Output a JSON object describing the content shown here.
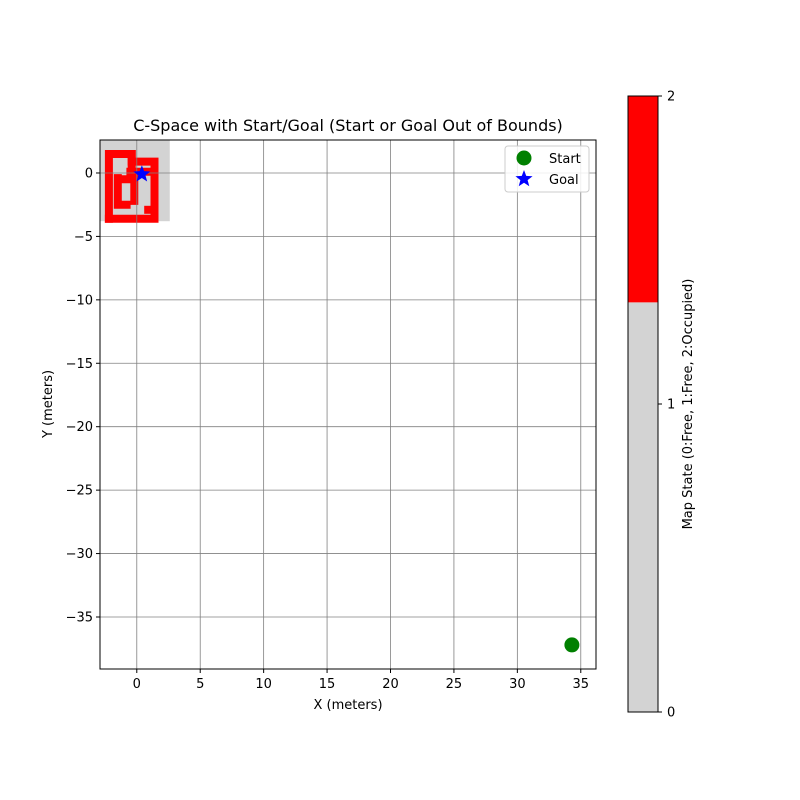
{
  "chart_data": {
    "type": "scatter",
    "title": "C-Space with Start/Goal (Start or Goal Out of Bounds)",
    "xlabel": "X (meters)",
    "ylabel": "Y (meters)",
    "xlim": [
      -2.9,
      36.2
    ],
    "ylim": [
      -39.1,
      2.6
    ],
    "xticks": [
      0,
      5,
      10,
      15,
      20,
      25,
      30,
      35
    ],
    "yticks": [
      0,
      -5,
      -10,
      -15,
      -20,
      -25,
      -30,
      -35
    ],
    "grid": true,
    "legend_position": "top-right",
    "series": [
      {
        "name": "Start",
        "marker": "circle",
        "color": "#008000",
        "x": [
          34.3
        ],
        "y": [
          -37.2
        ]
      },
      {
        "name": "Goal",
        "marker": "star",
        "color": "#0000ff",
        "x": [
          0.4
        ],
        "y": [
          -0.1
        ]
      }
    ],
    "map": {
      "extent": {
        "x": [
          -2.9,
          2.6
        ],
        "y": [
          -3.8,
          2.6
        ]
      },
      "free_color": "#d3d3d3",
      "occupied_color": "#ff0000",
      "occupied_walls": [
        [
          [
            -2.2,
            -3.6
          ],
          [
            -2.2,
            1.5
          ],
          [
            -0.4,
            1.5
          ]
        ],
        [
          [
            -0.4,
            0.9
          ],
          [
            1.4,
            0.9
          ],
          [
            1.4,
            -3.6
          ],
          [
            -2.2,
            -3.6
          ]
        ],
        [
          [
            -0.4,
            0.1
          ],
          [
            -0.4,
            1.5
          ]
        ],
        [
          [
            -1.5,
            -0.4
          ],
          [
            -1.5,
            -2.5
          ],
          [
            -0.8,
            -2.5
          ]
        ],
        [
          [
            -1.4,
            -0.5
          ],
          [
            -0.2,
            -0.5
          ],
          [
            -0.2,
            -2.2
          ]
        ],
        [
          [
            -0.5,
            0.1
          ],
          [
            1.0,
            0.1
          ]
        ],
        [
          [
            1.4,
            -2.9
          ],
          [
            0.9,
            -2.9
          ]
        ]
      ]
    },
    "colorbar": {
      "label": "Map State (0:Free, 1:Free, 2:Occupied)",
      "ticks": [
        "0",
        "1",
        "2"
      ],
      "segments": [
        {
          "from": 0,
          "to": 1.33,
          "color": "#d3d3d3"
        },
        {
          "from": 1.33,
          "to": 2,
          "color": "#ff0000"
        }
      ]
    }
  }
}
